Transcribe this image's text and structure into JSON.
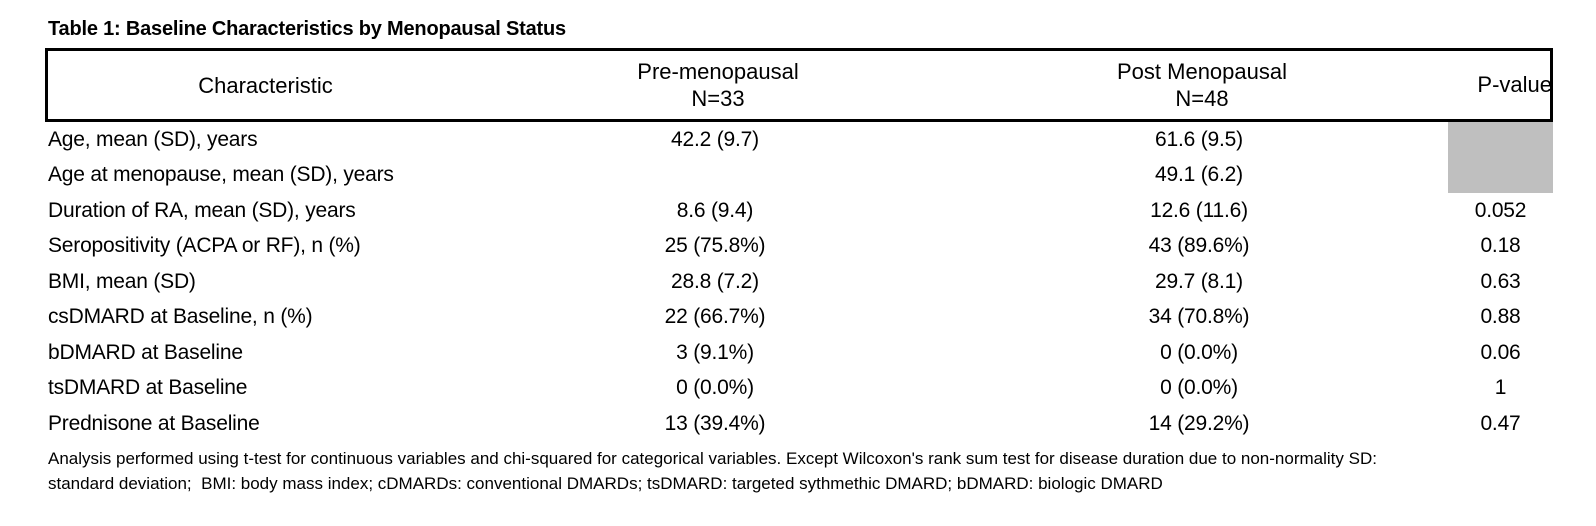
{
  "title": "Table 1: Baseline Characteristics by Menopausal Status",
  "table": {
    "header": {
      "characteristic": "Characteristic",
      "pre_label": "Pre-menopausal",
      "pre_n": "N=33",
      "post_label": "Post Menopausal",
      "post_n": "N=48",
      "p_label": "P-value"
    },
    "rows": [
      {
        "label": "Age, mean (SD), years",
        "pre": "42.2 (9.7)",
        "post": "61.6 (9.5)",
        "p": ""
      },
      {
        "label": "Age at menopause, mean (SD), years",
        "pre": "",
        "post": "49.1 (6.2)",
        "p": ""
      },
      {
        "label": "Duration of RA, mean (SD), years",
        "pre": "8.6 (9.4)",
        "post": "12.6 (11.6)",
        "p": "0.052"
      },
      {
        "label": "Seropositivity (ACPA or RF), n (%)",
        "pre": "25 (75.8%)",
        "post": "43 (89.6%)",
        "p": "0.18"
      },
      {
        "label": "BMI, mean (SD)",
        "pre": "28.8 (7.2)",
        "post": "29.7 (8.1)",
        "p": "0.63"
      },
      {
        "label": "csDMARD at Baseline, n (%)",
        "pre": "22 (66.7%)",
        "post": "34 (70.8%)",
        "p": "0.88"
      },
      {
        "label": "bDMARD at Baseline",
        "pre": "3 (9.1%)",
        "post": "0 (0.0%)",
        "p": "0.06"
      },
      {
        "label": "tsDMARD at Baseline",
        "pre": "0 (0.0%)",
        "post": "0 (0.0%)",
        "p": "1"
      },
      {
        "label": "Prednisone at Baseline",
        "pre": "13 (39.4%)",
        "post": "14 (29.2%)",
        "p": "0.47"
      }
    ]
  },
  "footnote": {
    "line1": "Analysis performed using t-test for continuous variables and chi-squared for categorical variables. Except Wilcoxon's rank sum test for disease duration due to non-normality SD:",
    "line2": "standard deviation;  BMI: body mass index; cDMARDs: conventional DMARDs; tsDMARD: targeted sythmethic DMARD; bDMARD: biologic DMARD"
  },
  "colors": {
    "shaded_cell": "#bfbfbf",
    "border": "#000000",
    "background": "#ffffff",
    "text": "#000000"
  }
}
